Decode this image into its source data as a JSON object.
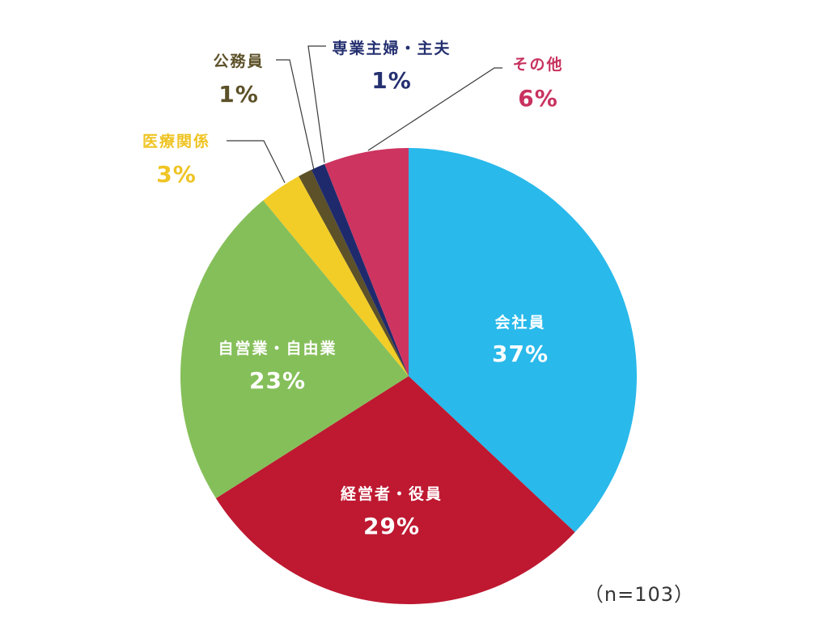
{
  "chart_data": {
    "type": "pie",
    "start": "top",
    "direction": "clockwise",
    "slices": [
      {
        "label": "会社員",
        "value": 37,
        "value_label": "37%",
        "color": "#29B9EB",
        "label_placement": "inside"
      },
      {
        "label": "経営者・役員",
        "value": 29,
        "value_label": "29%",
        "color": "#BE1931",
        "label_placement": "inside"
      },
      {
        "label": "自営業・自由業",
        "value": 23,
        "value_label": "23%",
        "color": "#85BF5A",
        "label_placement": "inside"
      },
      {
        "label": "医療関係",
        "value": 3,
        "value_label": "3%",
        "color": "#F2CD27",
        "label_placement": "outside"
      },
      {
        "label": "公務員",
        "value": 1,
        "value_label": "1%",
        "color": "#5C5128",
        "label_placement": "outside"
      },
      {
        "label": "専業主婦・主夫",
        "value": 1,
        "value_label": "1%",
        "color": "#1F2A6D",
        "label_placement": "outside"
      },
      {
        "label": "その他",
        "value": 6,
        "value_label": "6%",
        "color": "#CD3460",
        "label_placement": "outside"
      }
    ],
    "note": "（n=103）",
    "outside_label_colors": {
      "医療関係": "#EFC424",
      "公務員": "#5C5128",
      "専業主婦・主夫": "#253070",
      "その他": "#C8325E"
    }
  }
}
